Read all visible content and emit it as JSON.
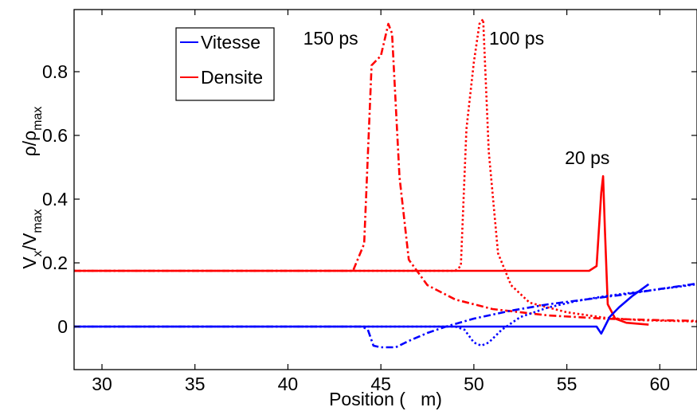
{
  "chart_data": {
    "type": "line",
    "xlabel": "Position (   m)",
    "ylabel_upper_base": "ρ/ρ",
    "ylabel_upper_sub": "max",
    "ylabel_lower_base": "V",
    "ylabel_lower_sub1": "x",
    "ylabel_lower_mid": "/V",
    "ylabel_lower_sub2": "max",
    "xlim": [
      28.5,
      62
    ],
    "ylim": [
      -0.135,
      0.995
    ],
    "xticks": [
      30,
      35,
      40,
      45,
      50,
      55,
      60
    ],
    "xtick_labels": [
      "30",
      "35",
      "40",
      "45",
      "50",
      "55",
      "60"
    ],
    "yticks": [
      0,
      0.2,
      0.4,
      0.6,
      0.8
    ],
    "ytick_labels": [
      "0",
      "0.2",
      "0.4",
      "0.6",
      "0.8"
    ],
    "grid": false,
    "legend": {
      "position": "top-left",
      "entries": [
        {
          "label": "Vitesse",
          "color": "#0000ff"
        },
        {
          "label": "Densite",
          "color": "#ff0000"
        }
      ]
    },
    "annotations": [
      {
        "text": "150 ps",
        "x": 42.3,
        "y": 0.905
      },
      {
        "text": "100 ps",
        "x": 52.3,
        "y": 0.905
      },
      {
        "text": "20 ps",
        "x": 56.1,
        "y": 0.53
      }
    ],
    "series": [
      {
        "color": "#ff0000",
        "style": "solid",
        "x": [
          28.5,
          30,
          35,
          40,
          45,
          50,
          55,
          56.2,
          56.6,
          56.85,
          56.95,
          57.05,
          57.2,
          57.6,
          58.2,
          59.4
        ],
        "y": [
          0.175,
          0.175,
          0.175,
          0.175,
          0.175,
          0.175,
          0.175,
          0.175,
          0.19,
          0.42,
          0.472,
          0.3,
          0.07,
          0.025,
          0.012,
          0.006
        ]
      },
      {
        "color": "#ff0000",
        "style": "dotted",
        "x": [
          28.5,
          35,
          40,
          45,
          49,
          49.3,
          49.6,
          50.0,
          50.3,
          50.5,
          50.8,
          51.3,
          52.0,
          53.0,
          55.0,
          57.0,
          59.0,
          62
        ],
        "y": [
          0.175,
          0.175,
          0.175,
          0.175,
          0.175,
          0.19,
          0.62,
          0.83,
          0.95,
          0.965,
          0.55,
          0.23,
          0.13,
          0.075,
          0.045,
          0.028,
          0.02,
          0.016
        ]
      },
      {
        "color": "#ff0000",
        "style": "dashdot",
        "x": [
          28.5,
          35,
          40,
          43.5,
          44.1,
          44.5,
          45.0,
          45.4,
          45.6,
          46.0,
          46.5,
          47.5,
          49.0,
          51.0,
          54.0,
          57.0,
          60.0,
          62
        ],
        "y": [
          0.175,
          0.175,
          0.175,
          0.175,
          0.26,
          0.82,
          0.85,
          0.95,
          0.92,
          0.47,
          0.21,
          0.13,
          0.085,
          0.055,
          0.035,
          0.025,
          0.02,
          0.018
        ]
      },
      {
        "color": "#0000ff",
        "style": "solid",
        "x": [
          28.5,
          35,
          40,
          45,
          50,
          55,
          56.6,
          56.85,
          57.0,
          57.3,
          57.8,
          58.5,
          59.4
        ],
        "y": [
          0.0,
          0.0,
          0.0,
          0.0,
          0.0,
          0.0,
          0.0,
          -0.022,
          -0.005,
          0.03,
          0.06,
          0.095,
          0.133
        ]
      },
      {
        "color": "#0000ff",
        "style": "dotted",
        "x": [
          28.5,
          35,
          40,
          45,
          49.0,
          49.5,
          50.0,
          50.4,
          50.8,
          51.5,
          52.5,
          54.0,
          55.5,
          57.0,
          59.0,
          61.0,
          62
        ],
        "y": [
          0.0,
          0.0,
          0.0,
          0.0,
          0.0,
          -0.01,
          -0.05,
          -0.06,
          -0.05,
          -0.01,
          0.03,
          0.06,
          0.08,
          0.095,
          0.11,
          0.125,
          0.133
        ]
      },
      {
        "color": "#0000ff",
        "style": "dashdot",
        "x": [
          28.5,
          35,
          40,
          44.0,
          44.3,
          44.6,
          45.0,
          45.8,
          46.5,
          47.5,
          48.5,
          50.0,
          52.0,
          54.0,
          56.0,
          58.0,
          60.0,
          62
        ],
        "y": [
          0.0,
          0.0,
          0.0,
          0.0,
          -0.01,
          -0.06,
          -0.065,
          -0.065,
          -0.045,
          -0.02,
          0.0,
          0.025,
          0.05,
          0.07,
          0.085,
          0.1,
          0.118,
          0.135
        ]
      }
    ]
  }
}
